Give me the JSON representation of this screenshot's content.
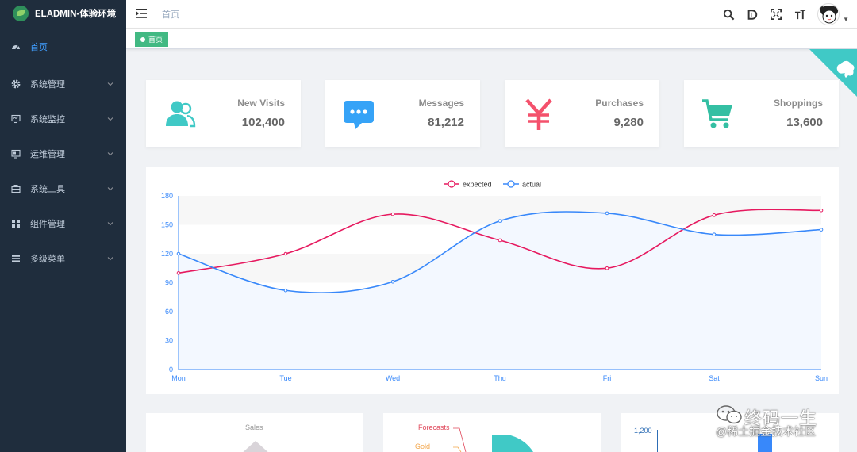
{
  "app": {
    "title": "ELADMIN-体验环境"
  },
  "sidebar": {
    "items": [
      {
        "label": "首页",
        "icon": "dashboard-icon",
        "active": true
      },
      {
        "label": "系统管理",
        "icon": "gear-icon"
      },
      {
        "label": "系统监控",
        "icon": "monitor-icon"
      },
      {
        "label": "运维管理",
        "icon": "server-icon"
      },
      {
        "label": "系统工具",
        "icon": "toolbox-icon"
      },
      {
        "label": "组件管理",
        "icon": "grid-icon"
      },
      {
        "label": "多级菜单",
        "icon": "list-icon"
      }
    ]
  },
  "navbar": {
    "breadcrumb": "首页"
  },
  "tags": {
    "active_tag": "首页"
  },
  "panels": [
    {
      "label": "New Visits",
      "value": "102,400",
      "color": "#40c9c6",
      "icon": "people-icon"
    },
    {
      "label": "Messages",
      "value": "81,212",
      "color": "#36a3f7",
      "icon": "message-icon"
    },
    {
      "label": "Purchases",
      "value": "9,280",
      "color": "#f4516c",
      "icon": "yen-icon"
    },
    {
      "label": "Shoppings",
      "value": "13,600",
      "color": "#34bfa3",
      "icon": "shopping-cart-icon"
    }
  ],
  "chart_data": {
    "type": "line",
    "categories": [
      "Mon",
      "Tue",
      "Wed",
      "Thu",
      "Fri",
      "Sat",
      "Sun"
    ],
    "series": [
      {
        "name": "expected",
        "values": [
          100,
          120,
          161,
          134,
          105,
          160,
          165
        ],
        "color": "#e6195f"
      },
      {
        "name": "actual",
        "values": [
          120,
          82,
          91,
          154,
          162,
          140,
          145
        ],
        "color": "#3888fa"
      }
    ],
    "yticks": [
      "0",
      "30",
      "60",
      "90",
      "120",
      "150",
      "180"
    ],
    "ylim": [
      0,
      180
    ],
    "legend": "top-center"
  },
  "bottom": {
    "pie_title": "Sales",
    "funnel_labels": [
      "Forecasts",
      "Gold"
    ],
    "bar_tick": "1,200"
  },
  "watermark": {
    "title": "终码一生",
    "subtitle": "@稀土掘金技术社区"
  }
}
